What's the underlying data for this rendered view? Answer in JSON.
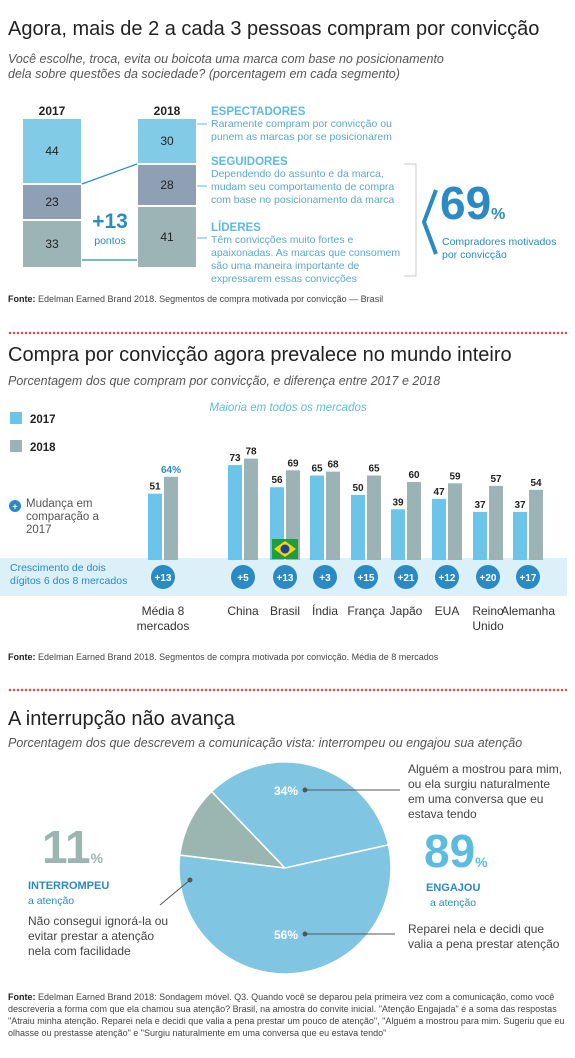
{
  "section1": {
    "title": "Agora, mais de 2 a cada 3 pessoas compram por convicção",
    "subtitle": "Você escolhe, troca, evita ou boicota uma marca com base no posicionamento dela sobre questões da sociedade? (porcentagem em cada segmento)",
    "years": [
      "2017",
      "2018"
    ],
    "change_value": "+13",
    "change_label": "pontos",
    "segments": [
      {
        "title": "ESPECTADORES",
        "text": "Raramente compram por convicção ou punem as marcas por se posicionarem"
      },
      {
        "title": "SEGUIDORES",
        "text": "Dependendo do assunto e da marca, mudam seu comportamento de compra com base no posicionamento da marca"
      },
      {
        "title": "LÍDERES",
        "text": "Têm convicções muito fortes e apaixonadas. As marcas que consomem são uma maneira importante de expressarem essas convicções"
      }
    ],
    "big_number": "69",
    "big_unit": "%",
    "big_label": "Compradores motivados por convicção",
    "source_label": "Fonte:",
    "source_text": " Edelman Earned Brand 2018. Segmentos de compra motivada por convicção — Brasil",
    "colors": {
      "espectadores": "#82cbe6",
      "seguidores": "#8fa0b4",
      "lideres": "#9cb4b6",
      "accent": "#2a8ac4"
    }
  },
  "section2": {
    "title": "Compra por convicção agora prevalece no mundo inteiro",
    "subtitle": "Porcentagem dos que compram por convicção, e diferença entre 2017 e 2018",
    "majority_label": "Maioria em todos os mercados",
    "legend_change": "Mudança em comparação a 2017",
    "growth_label": "Crescimento de dois dígitos 6 dos 8 mercados",
    "source_label": "Fonte:",
    "source_text": " Edelman Earned Brand 2018. Segmentos de compra motivada por convicção. Média de 8 mercados"
  },
  "section3": {
    "title": "A interrupção não avança",
    "subtitle": "Porcentagem dos que descrevem a comunicação vista: interrompeu ou engajou sua atenção",
    "left_number": "11",
    "left_unit": "%",
    "left_title": "INTERROMPEU",
    "left_sub": "a atenção",
    "left_text": "Não consegui ignorá-la ou evitar prestar a atenção nela com facilidade",
    "right_number": "89",
    "right_unit": "%",
    "right_title": "ENGAJOU",
    "right_sub": "a atenção",
    "annot_top": "Alguém a mostrou para mim, ou ela surgiu naturalmente em uma conversa que eu estava tendo",
    "annot_bottom": "Reparei nela e decidi que valia a pena prestar atenção",
    "source_label": "Fonte:",
    "source_text": " Edelman Earned Brand 2018: Sondagem móvel. Q3. Quando você se deparou pela primeira vez com a comunicação, como você descreveria a forma com que ela chamou sua atenção? Brasil, na amostra do convite inicial. \"Atenção Engajada\" é a soma das respostas \"Atraiu minha atenção. Reparei nela e decidi que valia a pena prestar um pouco de atenção\", \"Alguém a mostrou para mim. Sugeriu que eu olhasse ou prestasse atenção\" e \"Surgiu naturalmente em uma conversa que eu estava tendo\""
  },
  "chart_data": [
    {
      "type": "bar",
      "categories": [
        "2017",
        "2018"
      ],
      "series": [
        {
          "name": "ESPECTADORES",
          "values": [
            44,
            30
          ]
        },
        {
          "name": "SEGUIDORES",
          "values": [
            23,
            28
          ]
        },
        {
          "name": "LÍDERES",
          "values": [
            33,
            41
          ]
        }
      ],
      "stacked": true
    },
    {
      "type": "bar",
      "categories": [
        "Média 8 mercados",
        "China",
        "Brasil",
        "Índia",
        "França",
        "Japão",
        "EUA",
        "Reino Unido",
        "Alemanha"
      ],
      "series": [
        {
          "name": "2017",
          "values": [
            51,
            73,
            56,
            65,
            50,
            39,
            47,
            37,
            37
          ]
        },
        {
          "name": "2018",
          "values": [
            64,
            78,
            69,
            68,
            65,
            60,
            59,
            57,
            54
          ]
        }
      ],
      "changes": [
        "+13",
        "+5",
        "+13",
        "+3",
        "+15",
        "+21",
        "+12",
        "+20",
        "+17"
      ],
      "ylim": [
        0,
        100
      ],
      "colors": {
        "2017": "#6cc4e8",
        "2018": "#9bb3b5"
      }
    },
    {
      "type": "pie",
      "slices": [
        {
          "label": "INTERROMPEU",
          "value": 11,
          "color": "#9bb5b0"
        },
        {
          "label": "Alguém a mostrou para mim, ou ela surgiu naturalmente em uma conversa que eu estava tendo",
          "value": 34,
          "color": "#80c6e2"
        },
        {
          "label": "Reparei nela e decidi que valia a pena prestar atenção",
          "value": 56,
          "color": "#80c6e2"
        }
      ],
      "slice_labels": [
        "34%",
        "56%"
      ]
    }
  ]
}
